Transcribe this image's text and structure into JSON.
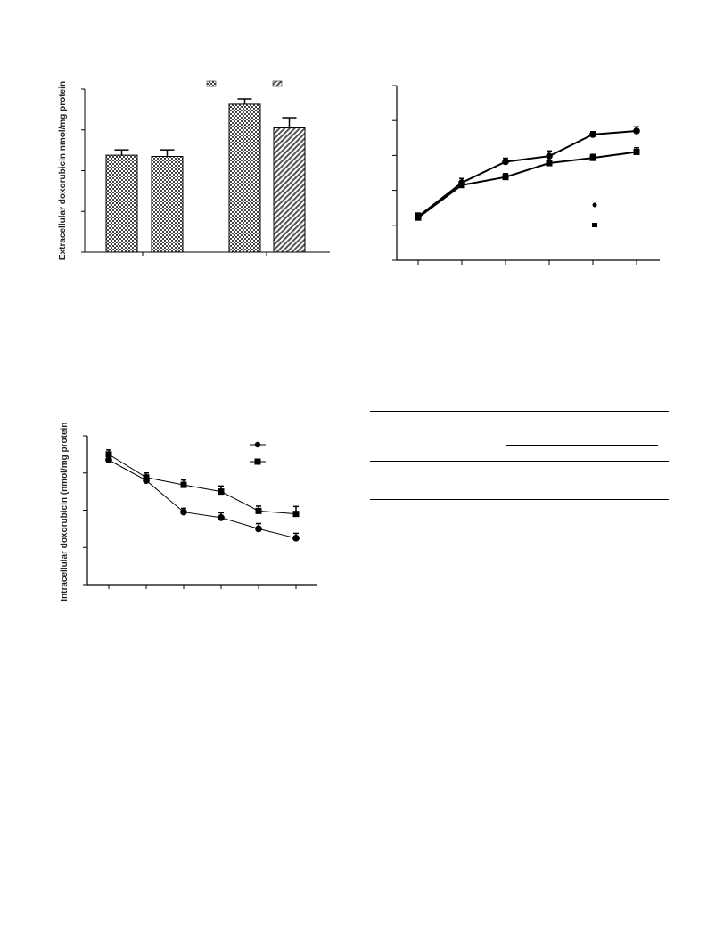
{
  "chart_data": [
    {
      "type": "bar",
      "ylabel": "Extracellular doxorubicin nmol/mg protein",
      "ylim": [
        0,
        4
      ],
      "groups": 2,
      "values": [
        2.38,
        2.35,
        3.63,
        3.05
      ],
      "errors": [
        0.13,
        0.16,
        0.13,
        0.25
      ],
      "patterns": [
        "checker",
        "checker",
        "checker",
        "diag"
      ],
      "legend": {
        "placement": "top",
        "swatches": [
          "checker",
          "diag"
        ]
      },
      "grid": false
    },
    {
      "type": "line",
      "ylim": [
        0,
        5
      ],
      "x": [
        1,
        2,
        3,
        4,
        5,
        6
      ],
      "series": [
        {
          "marker": "circle",
          "values": [
            1.25,
            2.22,
            2.82,
            2.98,
            3.6,
            3.7
          ],
          "errors": [
            0.1,
            0.12,
            0.1,
            0.15,
            0.08,
            0.12
          ]
        },
        {
          "marker": "square",
          "values": [
            1.22,
            2.15,
            2.38,
            2.78,
            2.93,
            3.1
          ],
          "errors": [
            0.1,
            0.1,
            0.1,
            0.08,
            0.1,
            0.12
          ]
        }
      ],
      "legend": {
        "placement": "center-right"
      },
      "grid": false
    },
    {
      "type": "line",
      "ylabel": "Intracellular doxorubicin (nmol/mg protein)",
      "ylim": [
        0,
        4
      ],
      "x": [
        1,
        2,
        3,
        4,
        5,
        6
      ],
      "series": [
        {
          "marker": "circle",
          "values": [
            3.35,
            2.8,
            1.95,
            1.8,
            1.5,
            1.25
          ],
          "errors": [
            0.1,
            0.1,
            0.1,
            0.13,
            0.14,
            0.13
          ]
        },
        {
          "marker": "square",
          "values": [
            3.5,
            2.88,
            2.68,
            2.5,
            1.98,
            1.9
          ],
          "errors": [
            0.12,
            0.12,
            0.13,
            0.15,
            0.13,
            0.2
          ]
        }
      ],
      "legend": {
        "placement": "top-right"
      },
      "grid": false
    }
  ]
}
